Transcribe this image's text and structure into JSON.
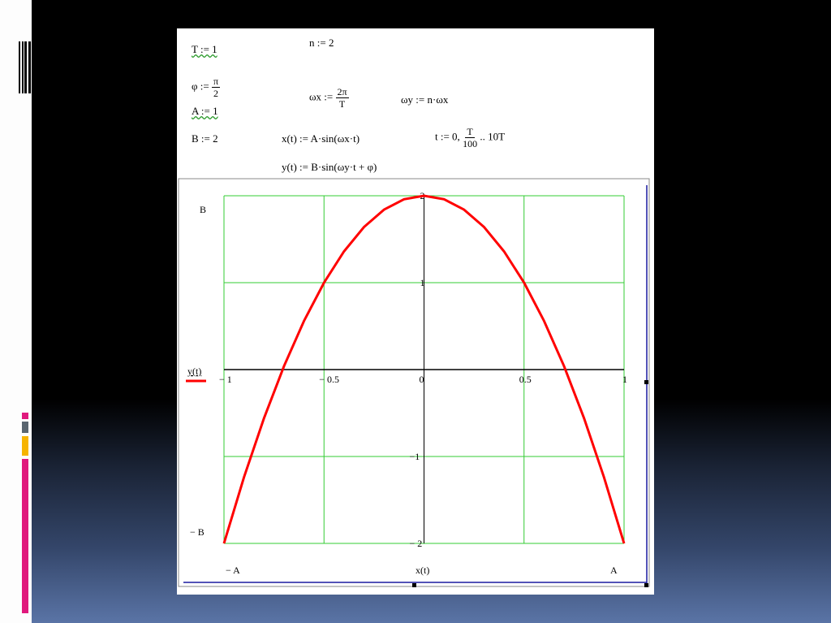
{
  "slide": {
    "accent_colors": [
      "#e0197d",
      "#5a6670",
      "#f6b400",
      "#e0197d"
    ],
    "background_bottom": "#5a74a6"
  },
  "formulas": {
    "T": "T := 1",
    "n": "n := 2",
    "phi_lhs": "φ :=",
    "phi_num": "π",
    "phi_den": "2",
    "wx_lhs": "ωx :=",
    "wx_num": "2π",
    "wx_den": "T",
    "wy": "ωy := n·ωx",
    "A": "A := 1",
    "B": "B := 2",
    "x": "x(t) := A·sin(ωx·t)",
    "t_lhs": "t := 0,",
    "t_num": "T",
    "t_den": "100",
    "t_rhs": ".. 10T",
    "y": "y(t) := B·sin(ωy·t + φ)"
  },
  "chart_data": {
    "type": "line",
    "xlabel": "x(t)",
    "ylabel": "y(t)",
    "xlim": [
      -1,
      1
    ],
    "ylim": [
      -2,
      2
    ],
    "x_limit_labels": [
      "− A",
      "A"
    ],
    "y_limit_labels": [
      "B",
      "− B"
    ],
    "x_ticks": [
      "− 1",
      "− 0.5",
      "0",
      "0.5",
      "1"
    ],
    "y_ticks": [
      "2",
      "1",
      "−1",
      "− 2"
    ],
    "grid": true,
    "grid_color": "#33cc33",
    "series_color": "#ff0000",
    "legend": "left",
    "series": [
      {
        "name": "y(t)",
        "x": [
          -1,
          -0.9,
          -0.8,
          -0.7,
          -0.6,
          -0.5,
          -0.4,
          -0.3,
          -0.2,
          -0.1,
          0,
          0.1,
          0.2,
          0.3,
          0.4,
          0.5,
          0.6,
          0.7,
          0.8,
          0.9,
          1
        ],
        "y": [
          -2,
          -1.24,
          -0.56,
          0.04,
          0.56,
          1,
          1.36,
          1.64,
          1.84,
          1.96,
          2,
          1.96,
          1.84,
          1.64,
          1.36,
          1,
          0.56,
          0.04,
          -0.56,
          -1.24,
          -2
        ]
      }
    ]
  }
}
